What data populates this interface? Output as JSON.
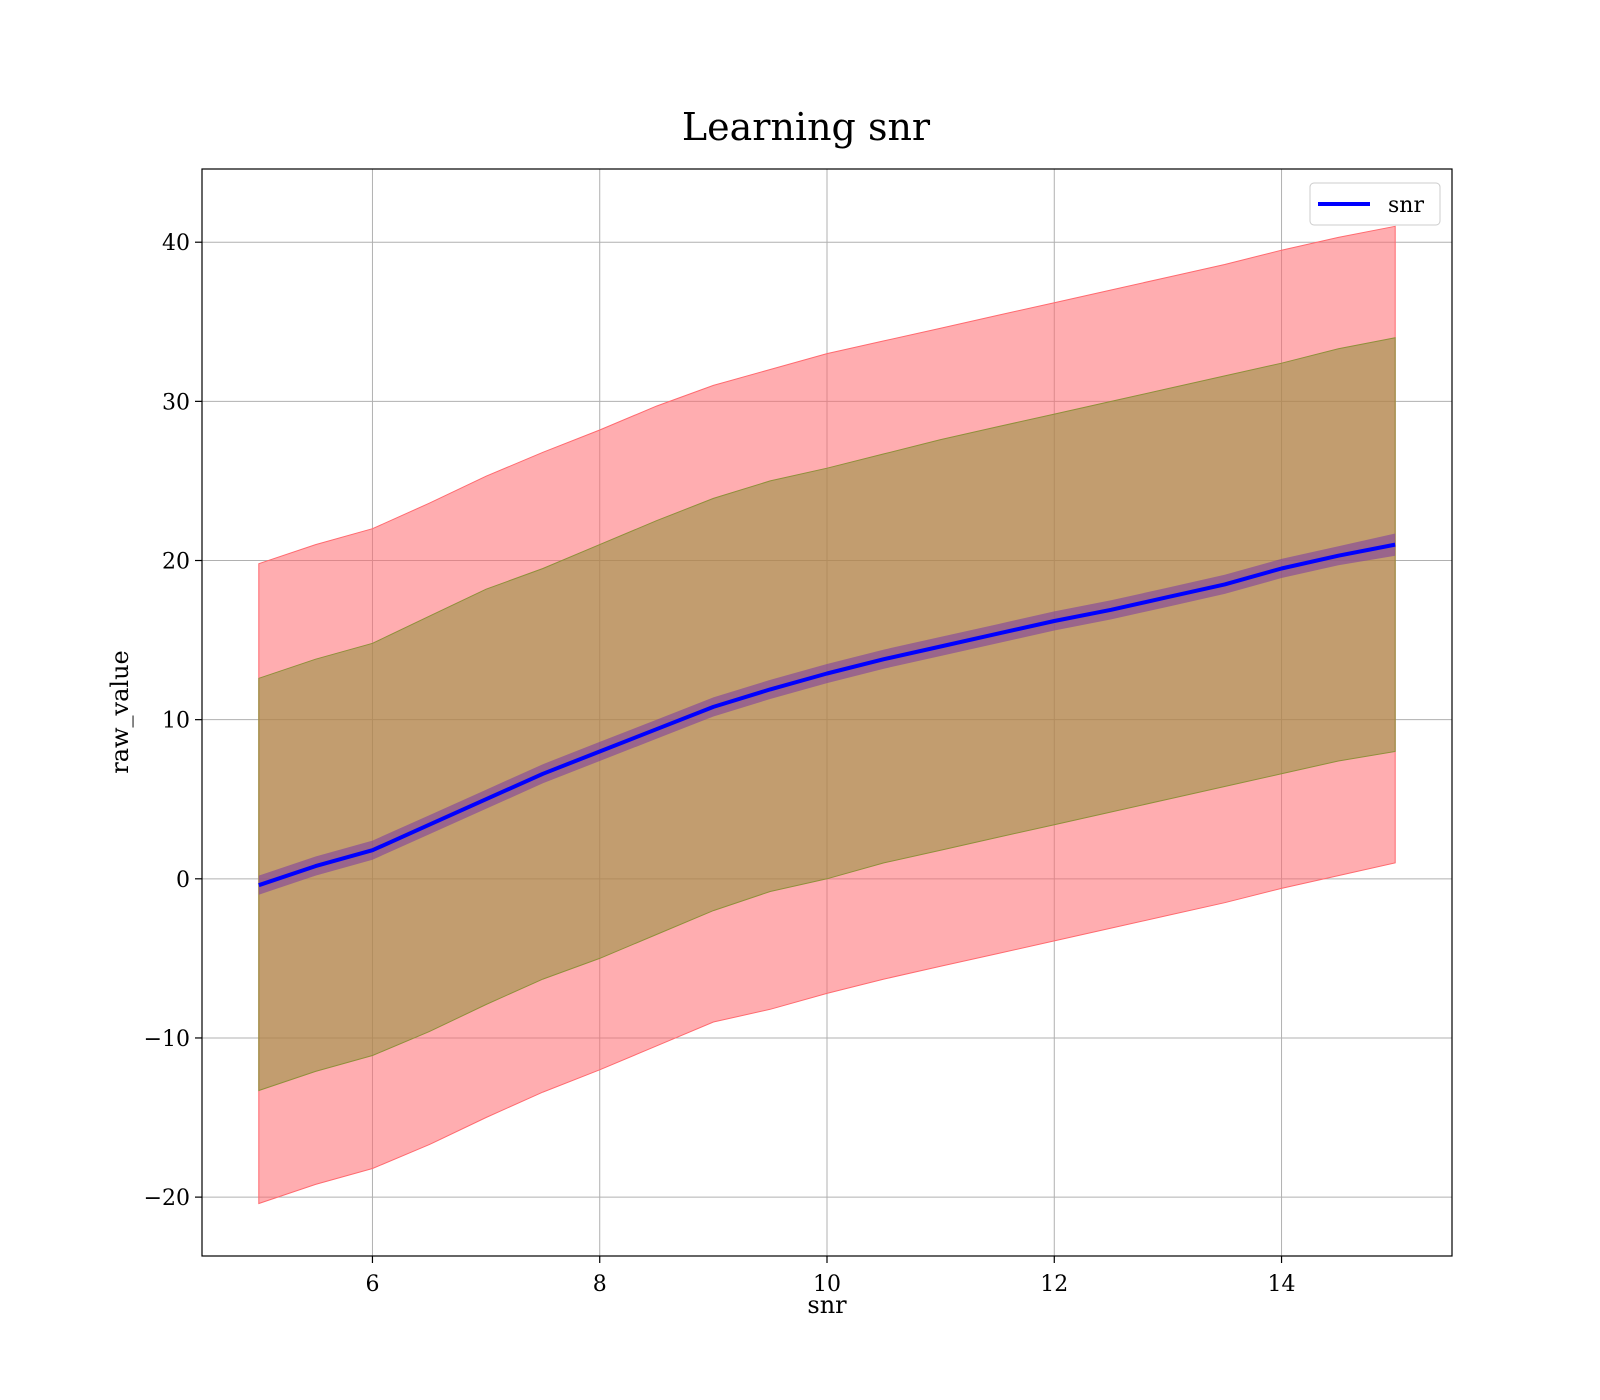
{
  "chart_data": {
    "type": "line",
    "title": "Learning snr",
    "xlabel": "snr",
    "ylabel": "raw_value",
    "xlim": [
      4.5,
      15.5
    ],
    "ylim": [
      -23.7,
      44.6
    ],
    "xticks": [
      6,
      8,
      10,
      12,
      14
    ],
    "yticks": [
      -20,
      -10,
      0,
      10,
      20,
      30,
      40
    ],
    "grid": true,
    "legend": {
      "position": "top-right",
      "entries": [
        "snr"
      ]
    },
    "colors": {
      "line": "#0000ff",
      "band_outer": "#ff6a6f",
      "band_inner": "#8f8f3a",
      "band_mean": "#7f3f9f"
    },
    "series": [
      {
        "name": "snr",
        "x": [
          5,
          5.5,
          6,
          6.5,
          7,
          7.5,
          8,
          8.5,
          9,
          9.5,
          10,
          10.5,
          11,
          11.5,
          12,
          12.5,
          13,
          13.5,
          14,
          14.5,
          15
        ],
        "mean": [
          -0.4,
          0.8,
          1.8,
          3.4,
          5.0,
          6.6,
          8.0,
          9.4,
          10.8,
          11.9,
          12.9,
          13.8,
          14.6,
          15.4,
          16.2,
          16.9,
          17.7,
          18.5,
          19.5,
          20.3,
          21.0
        ],
        "mean_band": [
          [
            -1.0,
            0.2,
            1.2,
            2.8,
            4.4,
            6.0,
            7.4,
            8.8,
            10.2,
            11.3,
            12.3,
            13.2,
            14.0,
            14.8,
            15.6,
            16.3,
            17.1,
            17.9,
            18.9,
            19.7,
            20.3
          ],
          [
            0.2,
            1.4,
            2.4,
            4.0,
            5.6,
            7.2,
            8.6,
            10.0,
            11.4,
            12.5,
            13.5,
            14.4,
            15.2,
            16.0,
            16.8,
            17.5,
            18.3,
            19.1,
            20.1,
            20.9,
            21.7
          ]
        ],
        "inner_band": [
          [
            -13.3,
            -12.1,
            -11.1,
            -9.6,
            -7.9,
            -6.3,
            -5.0,
            -3.5,
            -2.0,
            -0.8,
            0.0,
            1.0,
            1.8,
            2.6,
            3.4,
            4.2,
            5.0,
            5.8,
            6.6,
            7.4,
            8.0
          ],
          [
            12.6,
            13.8,
            14.8,
            16.5,
            18.2,
            19.5,
            21.0,
            22.5,
            23.9,
            25.0,
            25.8,
            26.7,
            27.6,
            28.4,
            29.2,
            30.0,
            30.8,
            31.6,
            32.4,
            33.3,
            34.0
          ]
        ],
        "outer_band": [
          [
            -20.4,
            -19.2,
            -18.2,
            -16.7,
            -15.0,
            -13.4,
            -12.0,
            -10.5,
            -9.0,
            -8.2,
            -7.2,
            -6.3,
            -5.5,
            -4.7,
            -3.9,
            -3.1,
            -2.3,
            -1.5,
            -0.6,
            0.2,
            1.0
          ],
          [
            19.8,
            21.0,
            22.0,
            23.6,
            25.3,
            26.8,
            28.2,
            29.7,
            31.0,
            32.0,
            33.0,
            33.8,
            34.6,
            35.4,
            36.2,
            37.0,
            37.8,
            38.6,
            39.5,
            40.3,
            41.0
          ]
        ]
      }
    ]
  }
}
